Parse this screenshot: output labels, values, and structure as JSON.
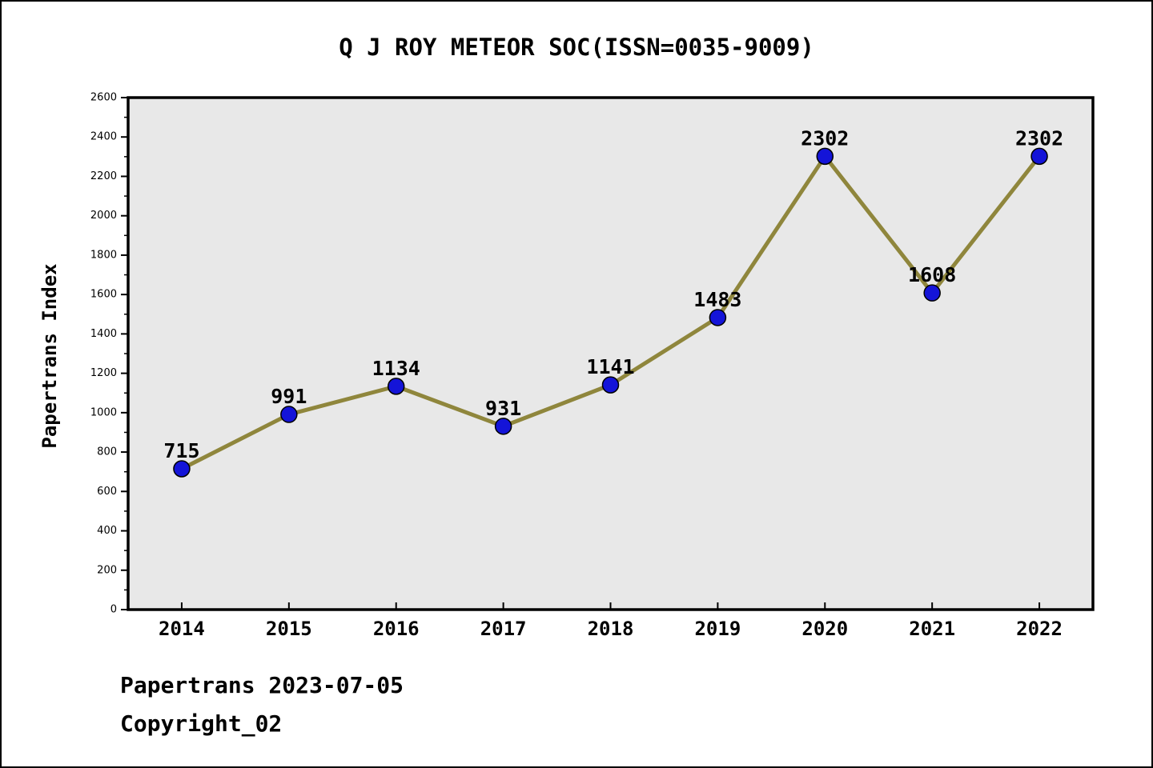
{
  "title": "Q J ROY METEOR SOC(ISSN=0035-9009)",
  "footer": {
    "line1": "Papertrans 2023-07-05",
    "line2": "Copyright_02"
  },
  "chart_data": {
    "type": "line",
    "title": "Q J ROY METEOR SOC(ISSN=0035-9009)",
    "categories": [
      "2014",
      "2015",
      "2016",
      "2017",
      "2018",
      "2019",
      "2020",
      "2021",
      "2022"
    ],
    "values": [
      715,
      991,
      1134,
      931,
      1141,
      1483,
      2302,
      1608,
      2302
    ],
    "point_labels": [
      "715",
      "991",
      "1134",
      "931",
      "1141",
      "1483",
      "2302",
      "1608",
      "2302"
    ],
    "xlabel": "",
    "ylabel": "Papertrans Index",
    "ylim": [
      0,
      2600
    ],
    "y_major_step": 200,
    "y_minor_step": 100,
    "y_tick_labels": [
      "0",
      "200",
      "400",
      "600",
      "800",
      "1000",
      "1200",
      "1400",
      "1600",
      "1800",
      "2000",
      "2200",
      "2400",
      "2600"
    ],
    "grid": false,
    "legend": "none",
    "colors": {
      "line": "#8f863c",
      "marker_fill": "#1414d8",
      "marker_edge": "#000000",
      "plot_bg": "#e8e8e8",
      "frame": "#000000",
      "figure_bg": "#ffffff",
      "text": "#000000"
    }
  }
}
